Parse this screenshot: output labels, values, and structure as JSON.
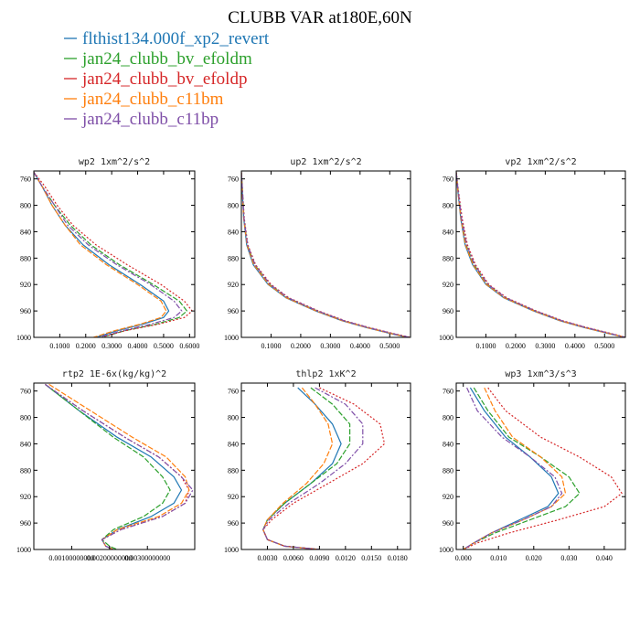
{
  "title": "CLUBB VAR at180E,60N",
  "legend": [
    {
      "name": "flthist134.000f_xp2_revert",
      "color": "#1f77b4"
    },
    {
      "name": "jan24_clubb_bv_efoldm",
      "color": "#2ca02c"
    },
    {
      "name": "jan24_clubb_bv_efoldp",
      "color": "#d62728"
    },
    {
      "name": "jan24_clubb_c11bm",
      "color": "#ff7f0e"
    },
    {
      "name": "jan24_clubb_c11bp",
      "color": "#7f4fa8"
    }
  ],
  "chart_data": [
    {
      "type": "line",
      "title": "wp2   1xm^2/s^2",
      "xlim": [
        0,
        0.62
      ],
      "ylim": [
        1000,
        748
      ],
      "y_inverted": true,
      "xticks": [
        0.1,
        0.2,
        0.3,
        0.4,
        0.5,
        0.6
      ],
      "xtick_labels": [
        "0.1000",
        "0.2000",
        "0.3000",
        "0.4000",
        "0.5000",
        "0.6000"
      ],
      "yticks": [
        760,
        800,
        840,
        880,
        920,
        960,
        1000
      ],
      "y": [
        750,
        770,
        800,
        830,
        860,
        890,
        920,
        945,
        960,
        970,
        980,
        990,
        1000
      ],
      "series": [
        {
          "x": [
            0.0,
            0.03,
            0.07,
            0.12,
            0.19,
            0.29,
            0.41,
            0.5,
            0.52,
            0.5,
            0.42,
            0.32,
            0.24
          ]
        },
        {
          "x": [
            0.0,
            0.03,
            0.08,
            0.14,
            0.22,
            0.33,
            0.46,
            0.56,
            0.59,
            0.56,
            0.47,
            0.35,
            0.26
          ]
        },
        {
          "x": [
            0.0,
            0.04,
            0.09,
            0.15,
            0.24,
            0.36,
            0.49,
            0.58,
            0.61,
            0.58,
            0.48,
            0.35,
            0.26
          ]
        },
        {
          "x": [
            0.0,
            0.03,
            0.07,
            0.12,
            0.18,
            0.28,
            0.4,
            0.49,
            0.51,
            0.49,
            0.41,
            0.31,
            0.23
          ]
        },
        {
          "x": [
            0.0,
            0.03,
            0.08,
            0.13,
            0.21,
            0.32,
            0.45,
            0.54,
            0.57,
            0.54,
            0.45,
            0.34,
            0.25
          ]
        }
      ]
    },
    {
      "type": "line",
      "title": "up2   1xm^2/s^2",
      "xlim": [
        0,
        0.57
      ],
      "ylim": [
        1000,
        748
      ],
      "y_inverted": true,
      "xticks": [
        0.1,
        0.2,
        0.3,
        0.4,
        0.5
      ],
      "xtick_labels": [
        "0.1000",
        "0.2000",
        "0.3000",
        "0.4000",
        "0.5000"
      ],
      "yticks": [
        760,
        800,
        840,
        880,
        920,
        960,
        1000
      ],
      "y": [
        750,
        780,
        820,
        860,
        890,
        920,
        940,
        960,
        975,
        985,
        995,
        1000
      ],
      "series": [
        {
          "x": [
            0.0,
            0.003,
            0.008,
            0.018,
            0.04,
            0.09,
            0.15,
            0.25,
            0.34,
            0.42,
            0.51,
            0.56
          ]
        },
        {
          "x": [
            0.0,
            0.004,
            0.009,
            0.02,
            0.045,
            0.095,
            0.155,
            0.255,
            0.345,
            0.425,
            0.515,
            0.565
          ]
        },
        {
          "x": [
            0.0,
            0.004,
            0.01,
            0.022,
            0.048,
            0.1,
            0.16,
            0.26,
            0.35,
            0.43,
            0.52,
            0.57
          ]
        },
        {
          "x": [
            0.0,
            0.003,
            0.008,
            0.019,
            0.042,
            0.092,
            0.152,
            0.252,
            0.342,
            0.422,
            0.512,
            0.562
          ]
        },
        {
          "x": [
            0.0,
            0.004,
            0.009,
            0.021,
            0.046,
            0.097,
            0.157,
            0.257,
            0.347,
            0.427,
            0.517,
            0.567
          ]
        }
      ]
    },
    {
      "type": "line",
      "title": "vp2   1xm^2/s^2",
      "xlim": [
        0,
        0.57
      ],
      "ylim": [
        1000,
        748
      ],
      "y_inverted": true,
      "xticks": [
        0.1,
        0.2,
        0.3,
        0.4,
        0.5
      ],
      "xtick_labels": [
        "0.1000",
        "0.2000",
        "0.3000",
        "0.4000",
        "0.5000"
      ],
      "yticks": [
        760,
        800,
        840,
        880,
        920,
        960,
        1000
      ],
      "y": [
        750,
        780,
        820,
        860,
        890,
        920,
        940,
        960,
        975,
        985,
        995,
        1000
      ],
      "series": [
        {
          "x": [
            0.0,
            0.006,
            0.015,
            0.03,
            0.055,
            0.1,
            0.16,
            0.26,
            0.35,
            0.43,
            0.52,
            0.57
          ]
        },
        {
          "x": [
            0.0,
            0.007,
            0.017,
            0.033,
            0.06,
            0.105,
            0.165,
            0.265,
            0.355,
            0.435,
            0.525,
            0.57
          ]
        },
        {
          "x": [
            0.0,
            0.008,
            0.02,
            0.038,
            0.065,
            0.11,
            0.17,
            0.27,
            0.36,
            0.44,
            0.53,
            0.57
          ]
        },
        {
          "x": [
            0.0,
            0.006,
            0.016,
            0.031,
            0.057,
            0.102,
            0.162,
            0.262,
            0.352,
            0.432,
            0.522,
            0.57
          ]
        },
        {
          "x": [
            0.0,
            0.007,
            0.018,
            0.035,
            0.062,
            0.107,
            0.167,
            0.267,
            0.357,
            0.437,
            0.527,
            0.57
          ]
        }
      ]
    },
    {
      "type": "line",
      "title": "rtp2   1E-6x(kg/kg)^2",
      "xlim": [
        0,
        0.00425
      ],
      "ylim": [
        1000,
        748
      ],
      "y_inverted": true,
      "xticks": [
        0.001,
        0.002,
        0.003
      ],
      "xtick_labels": [
        "0.00100000000",
        "0.00200000000",
        "0.00300000000"
      ],
      "yticks": [
        760,
        800,
        840,
        880,
        920,
        960,
        1000
      ],
      "y": [
        750,
        790,
        830,
        860,
        890,
        910,
        930,
        950,
        970,
        985,
        995,
        1000
      ],
      "series": [
        {
          "x": [
            0.0003,
            0.0012,
            0.0022,
            0.0031,
            0.0037,
            0.0039,
            0.0037,
            0.0031,
            0.0022,
            0.0018,
            0.0019,
            0.0021
          ]
        },
        {
          "x": [
            0.0003,
            0.0012,
            0.0021,
            0.0029,
            0.0034,
            0.0036,
            0.0034,
            0.0029,
            0.0021,
            0.0018,
            0.002,
            0.0022
          ]
        },
        {
          "x": [
            0.0003,
            0.0013,
            0.0024,
            0.0033,
            0.0039,
            0.0041,
            0.004,
            0.0034,
            0.0023,
            0.0018,
            0.0019,
            0.0021
          ]
        },
        {
          "x": [
            0.0004,
            0.0015,
            0.0026,
            0.0035,
            0.004,
            0.0041,
            0.0039,
            0.0033,
            0.0022,
            0.0018,
            0.0019,
            0.0021
          ]
        },
        {
          "x": [
            0.0003,
            0.0013,
            0.0024,
            0.0033,
            0.0039,
            0.0042,
            0.004,
            0.0034,
            0.0023,
            0.0018,
            0.0019,
            0.0021
          ]
        }
      ]
    },
    {
      "type": "line",
      "title": "thlp2   1xK^2",
      "xlim": [
        0,
        0.0195
      ],
      "ylim": [
        1000,
        748
      ],
      "y_inverted": true,
      "xticks": [
        0.003,
        0.006,
        0.009,
        0.012,
        0.015,
        0.018
      ],
      "xtick_labels": [
        "0.0030",
        "0.0060",
        "0.0090",
        "0.0120",
        "0.0150",
        "0.0180"
      ],
      "yticks": [
        760,
        800,
        840,
        880,
        920,
        960,
        1000
      ],
      "y": [
        755,
        780,
        810,
        840,
        870,
        900,
        930,
        955,
        970,
        985,
        995,
        1000
      ],
      "series": [
        {
          "x": [
            0.0065,
            0.0085,
            0.0105,
            0.0115,
            0.0105,
            0.008,
            0.005,
            0.003,
            0.0025,
            0.003,
            0.005,
            0.009
          ]
        },
        {
          "x": [
            0.008,
            0.0105,
            0.0125,
            0.0125,
            0.011,
            0.008,
            0.005,
            0.003,
            0.0025,
            0.003,
            0.005,
            0.009
          ]
        },
        {
          "x": [
            0.009,
            0.013,
            0.016,
            0.0165,
            0.014,
            0.01,
            0.006,
            0.0035,
            0.0025,
            0.003,
            0.005,
            0.009
          ]
        },
        {
          "x": [
            0.007,
            0.0085,
            0.01,
            0.0105,
            0.0095,
            0.0075,
            0.0048,
            0.003,
            0.0025,
            0.003,
            0.005,
            0.009
          ]
        },
        {
          "x": [
            0.0085,
            0.012,
            0.014,
            0.014,
            0.012,
            0.009,
            0.0055,
            0.0032,
            0.0025,
            0.003,
            0.005,
            0.009
          ]
        }
      ]
    },
    {
      "type": "line",
      "title": "wp3   1xm^3/s^3",
      "xlim": [
        -0.002,
        0.046
      ],
      "ylim": [
        1000,
        748
      ],
      "y_inverted": true,
      "xticks": [
        0.0,
        0.01,
        0.02,
        0.03,
        0.04
      ],
      "xtick_labels": [
        "0.000",
        "0.010",
        "0.020",
        "0.030",
        "0.040"
      ],
      "yticks": [
        760,
        800,
        840,
        880,
        920,
        960,
        1000
      ],
      "y": [
        755,
        790,
        830,
        860,
        890,
        915,
        935,
        955,
        975,
        990,
        1000
      ],
      "series": [
        {
          "x": [
            0.002,
            0.006,
            0.012,
            0.019,
            0.025,
            0.027,
            0.024,
            0.016,
            0.008,
            0.003,
            0.0
          ]
        },
        {
          "x": [
            0.003,
            0.007,
            0.013,
            0.022,
            0.03,
            0.033,
            0.029,
            0.019,
            0.009,
            0.003,
            0.0
          ]
        },
        {
          "x": [
            0.007,
            0.012,
            0.022,
            0.033,
            0.042,
            0.045,
            0.04,
            0.027,
            0.013,
            0.004,
            0.0
          ]
        },
        {
          "x": [
            0.006,
            0.009,
            0.014,
            0.022,
            0.028,
            0.029,
            0.025,
            0.017,
            0.008,
            0.003,
            0.0
          ]
        },
        {
          "x": [
            0.001,
            0.004,
            0.011,
            0.019,
            0.026,
            0.028,
            0.025,
            0.017,
            0.008,
            0.003,
            0.0
          ]
        }
      ]
    }
  ]
}
